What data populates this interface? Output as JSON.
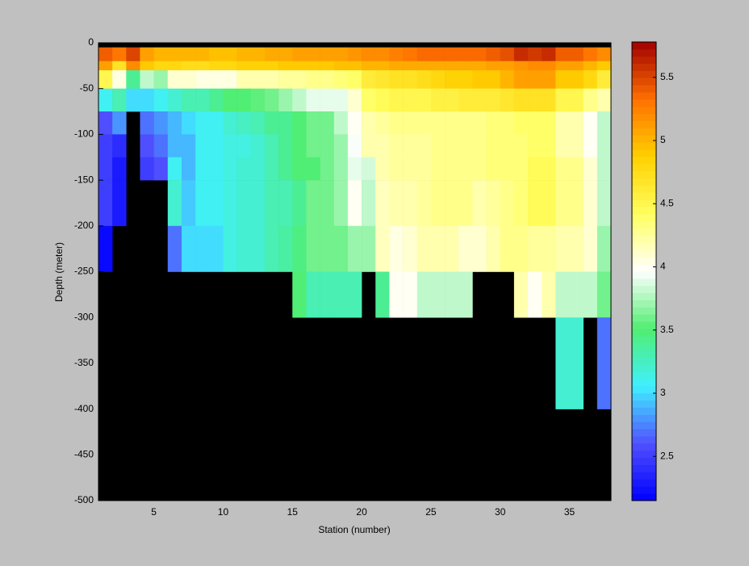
{
  "chart_data": {
    "type": "heatmap",
    "x_label": "Station (number)",
    "y_label": "Depth (meter)",
    "x_edges": [
      1,
      2,
      3,
      4,
      5,
      6,
      7,
      8,
      9,
      10,
      11,
      12,
      13,
      14,
      15,
      16,
      17,
      18,
      19,
      20,
      21,
      22,
      23,
      24,
      25,
      26,
      27,
      28,
      29,
      30,
      31,
      32,
      33,
      34,
      35,
      36,
      37,
      38
    ],
    "y_edges": [
      0,
      -5,
      -20,
      -30,
      -50,
      -75,
      -100,
      -125,
      -150,
      -200,
      -250,
      -300,
      -400,
      -500
    ],
    "values": [
      [
        null,
        null,
        null,
        null,
        null,
        null,
        null,
        null,
        null,
        null,
        null,
        null,
        null,
        null,
        null,
        null,
        null,
        null,
        null,
        null,
        null,
        null,
        null,
        null,
        null,
        null,
        null,
        null,
        null,
        null,
        null,
        null,
        null,
        null,
        null,
        null,
        null
      ],
      [
        5.4,
        5.3,
        5.5,
        5.1,
        5.0,
        5.0,
        5.0,
        5.0,
        4.95,
        4.95,
        5.0,
        5.0,
        5.05,
        5.05,
        5.1,
        5.1,
        5.1,
        5.1,
        5.15,
        5.2,
        5.2,
        5.25,
        5.3,
        5.35,
        5.35,
        5.35,
        5.35,
        5.35,
        5.4,
        5.45,
        5.6,
        5.55,
        5.6,
        5.4,
        5.4,
        5.3,
        5.2
      ],
      [
        5.1,
        4.7,
        5.2,
        4.9,
        4.8,
        4.8,
        4.75,
        4.75,
        4.8,
        4.8,
        4.85,
        4.85,
        4.85,
        4.9,
        4.9,
        4.9,
        4.9,
        4.95,
        4.95,
        5.0,
        5.0,
        5.05,
        5.05,
        5.05,
        5.05,
        5.05,
        5.05,
        5.05,
        5.1,
        5.1,
        5.15,
        5.2,
        5.2,
        5.1,
        5.1,
        5.0,
        4.9
      ],
      [
        4.5,
        4.05,
        3.4,
        3.8,
        3.7,
        4.1,
        4.1,
        4.05,
        4.05,
        4.05,
        4.2,
        4.2,
        4.2,
        4.25,
        4.25,
        4.3,
        4.3,
        4.35,
        4.4,
        4.6,
        4.65,
        4.7,
        4.7,
        4.75,
        4.8,
        4.85,
        4.85,
        4.9,
        4.9,
        5.0,
        5.1,
        5.1,
        5.1,
        4.9,
        4.9,
        4.8,
        4.6
      ],
      [
        3.1,
        3.3,
        3.0,
        3.0,
        3.1,
        3.2,
        3.3,
        3.3,
        3.4,
        3.5,
        3.5,
        3.55,
        3.6,
        3.7,
        3.8,
        3.9,
        3.9,
        3.9,
        4.1,
        4.4,
        4.45,
        4.5,
        4.5,
        4.5,
        4.55,
        4.55,
        4.6,
        4.6,
        4.6,
        4.65,
        4.7,
        4.7,
        4.7,
        4.5,
        4.5,
        4.3,
        4.2
      ],
      [
        2.6,
        2.8,
        null,
        2.7,
        2.8,
        2.9,
        3.0,
        3.1,
        3.1,
        3.2,
        3.25,
        3.3,
        3.4,
        3.4,
        3.5,
        3.6,
        3.6,
        3.8,
        4.0,
        4.2,
        4.25,
        4.3,
        4.3,
        4.3,
        4.3,
        4.3,
        4.3,
        4.3,
        4.35,
        4.35,
        4.4,
        4.4,
        4.4,
        4.2,
        4.2,
        4.0,
        3.8
      ],
      [
        2.5,
        2.4,
        null,
        2.6,
        2.7,
        2.9,
        2.9,
        3.1,
        3.1,
        3.15,
        3.15,
        3.2,
        3.3,
        3.4,
        3.5,
        3.6,
        3.6,
        3.7,
        3.95,
        4.2,
        4.2,
        4.25,
        4.25,
        4.25,
        4.3,
        4.3,
        4.3,
        4.3,
        4.35,
        4.35,
        4.35,
        4.4,
        4.4,
        4.2,
        4.2,
        4.0,
        3.8
      ],
      [
        2.5,
        2.3,
        null,
        2.5,
        2.6,
        3.1,
        2.9,
        3.1,
        3.1,
        3.15,
        3.2,
        3.2,
        3.3,
        3.4,
        3.5,
        3.5,
        3.6,
        3.7,
        3.9,
        3.85,
        4.2,
        4.25,
        4.25,
        4.25,
        4.3,
        4.3,
        4.3,
        4.3,
        4.35,
        4.35,
        4.35,
        4.45,
        4.45,
        4.3,
        4.3,
        4.1,
        3.8
      ],
      [
        2.5,
        2.3,
        null,
        null,
        null,
        3.2,
        2.95,
        3.1,
        3.1,
        3.15,
        3.2,
        3.2,
        3.3,
        3.3,
        3.4,
        3.6,
        3.6,
        3.7,
        4.0,
        3.8,
        4.15,
        4.2,
        4.2,
        4.25,
        4.3,
        4.3,
        4.3,
        4.2,
        4.25,
        4.3,
        4.35,
        4.45,
        4.45,
        4.3,
        4.3,
        4.1,
        3.8
      ],
      [
        2.2,
        null,
        null,
        null,
        null,
        2.7,
        3.0,
        3.0,
        3.0,
        3.15,
        3.2,
        3.2,
        3.3,
        3.35,
        3.45,
        3.6,
        3.6,
        3.6,
        3.7,
        3.7,
        4.15,
        4.05,
        4.1,
        4.2,
        4.2,
        4.2,
        4.1,
        4.1,
        4.2,
        4.3,
        4.3,
        4.25,
        4.25,
        4.2,
        4.2,
        4.1,
        3.7
      ],
      [
        null,
        null,
        null,
        null,
        null,
        null,
        null,
        null,
        null,
        null,
        null,
        null,
        null,
        null,
        3.5,
        3.3,
        3.3,
        3.3,
        3.3,
        null,
        3.4,
        4.0,
        4.0,
        3.8,
        3.8,
        3.8,
        3.8,
        null,
        null,
        null,
        4.2,
        4.0,
        4.2,
        3.8,
        3.8,
        3.8,
        3.6
      ],
      [
        null,
        null,
        null,
        null,
        null,
        null,
        null,
        null,
        null,
        null,
        null,
        null,
        null,
        null,
        null,
        null,
        null,
        null,
        null,
        null,
        null,
        null,
        null,
        null,
        null,
        null,
        null,
        null,
        null,
        null,
        null,
        null,
        null,
        3.2,
        3.2,
        null,
        2.7
      ],
      [
        null,
        null,
        null,
        null,
        null,
        null,
        null,
        null,
        null,
        null,
        null,
        null,
        null,
        null,
        null,
        null,
        null,
        null,
        null,
        null,
        null,
        null,
        null,
        null,
        null,
        null,
        null,
        null,
        null,
        null,
        null,
        null,
        null,
        null,
        null,
        null,
        null
      ]
    ],
    "xlim": [
      1,
      38
    ],
    "ylim": [
      -500,
      0
    ],
    "xticks": [
      5,
      10,
      15,
      20,
      25,
      30,
      35
    ],
    "yticks": [
      0,
      -50,
      -100,
      -150,
      -200,
      -250,
      -300,
      -350,
      -400,
      -450,
      -500
    ],
    "clim": [
      2.15,
      5.78
    ],
    "cticks": [
      2.5,
      3,
      3.5,
      4,
      4.5,
      5,
      5.5
    ],
    "colormap": [
      "#0000ff",
      "#5050ff",
      "#40f0ff",
      "#50ee70",
      "#ffffff",
      "#ffff60",
      "#ffd000",
      "#ff7000",
      "#a00000"
    ],
    "nan_color": "#000000"
  }
}
